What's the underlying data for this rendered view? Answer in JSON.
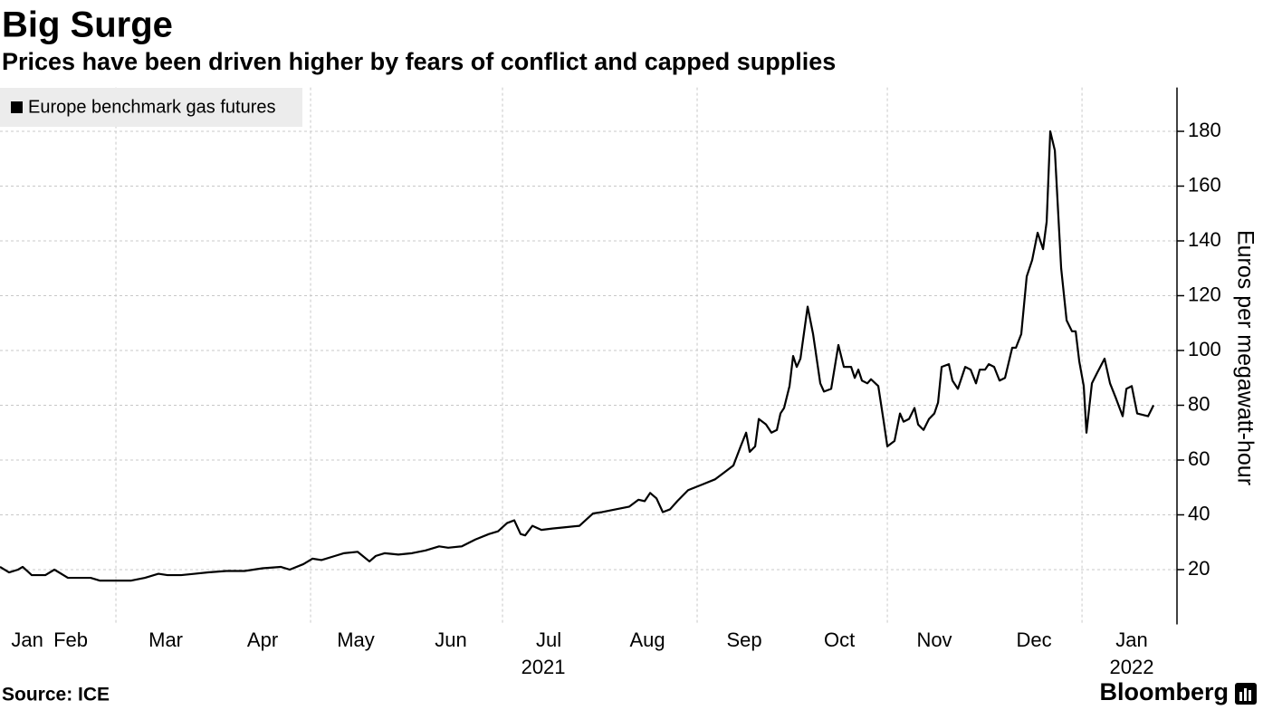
{
  "chart_data": {
    "type": "line",
    "title": "Big Surge",
    "subtitle": "Prices have been driven higher by fears of conflict and capped supplies",
    "source": "Source: ICE",
    "brand": "Bloomberg",
    "y_label": "Euros per megawatt-hour",
    "legend": "top-left",
    "grid": true,
    "xlim": [
      0.767,
      12.86
    ],
    "ylim": [
      0,
      196
    ],
    "yticks": [
      20,
      40,
      60,
      80,
      100,
      120,
      140,
      160,
      180
    ],
    "xticks": [
      {
        "value": 1.047,
        "label": "Jan"
      },
      {
        "value": 1.493,
        "label": "Feb"
      },
      {
        "value": 2.47,
        "label": "Mar"
      },
      {
        "value": 3.465,
        "label": "Apr"
      },
      {
        "value": 4.423,
        "label": "May"
      },
      {
        "value": 5.4,
        "label": "Jun"
      },
      {
        "value": 6.405,
        "label": "Jul"
      },
      {
        "value": 7.419,
        "label": "Aug"
      },
      {
        "value": 8.414,
        "label": "Sep"
      },
      {
        "value": 9.391,
        "label": "Oct"
      },
      {
        "value": 10.367,
        "label": "Nov"
      },
      {
        "value": 11.391,
        "label": "Dec"
      },
      {
        "value": 12.395,
        "label": "Jan"
      }
    ],
    "xgrid": [
      1.958,
      3.958,
      5.93,
      7.93,
      9.884,
      11.884
    ],
    "year_labels": [
      {
        "value": 6.349,
        "label": "2021"
      },
      {
        "value": 12.395,
        "label": "2022"
      }
    ],
    "x": [
      0.767,
      0.86,
      0.953,
      1.0,
      1.093,
      1.233,
      1.326,
      1.465,
      1.605,
      1.698,
      1.791,
      1.977,
      2.116,
      2.256,
      2.395,
      2.488,
      2.628,
      2.767,
      2.907,
      3.093,
      3.279,
      3.465,
      3.651,
      3.744,
      3.884,
      3.977,
      4.07,
      4.209,
      4.302,
      4.442,
      4.563,
      4.628,
      4.721,
      4.86,
      5.0,
      5.14,
      5.279,
      5.372,
      5.512,
      5.651,
      5.791,
      5.884,
      5.977,
      6.051,
      6.116,
      6.163,
      6.237,
      6.33,
      6.442,
      6.581,
      6.721,
      6.86,
      6.953,
      7.093,
      7.233,
      7.326,
      7.391,
      7.447,
      7.512,
      7.577,
      7.651,
      7.726,
      7.837,
      7.977,
      8.116,
      8.209,
      8.302,
      8.377,
      8.433,
      8.47,
      8.526,
      8.563,
      8.637,
      8.693,
      8.749,
      8.786,
      8.823,
      8.879,
      8.916,
      8.953,
      8.991,
      9.065,
      9.121,
      9.195,
      9.233,
      9.307,
      9.381,
      9.437,
      9.512,
      9.549,
      9.586,
      9.623,
      9.679,
      9.716,
      9.791,
      9.847,
      9.884,
      9.958,
      10.014,
      10.051,
      10.107,
      10.163,
      10.2,
      10.256,
      10.312,
      10.367,
      10.405,
      10.442,
      10.516,
      10.553,
      10.609,
      10.684,
      10.74,
      10.795,
      10.833,
      10.888,
      10.926,
      10.981,
      11.037,
      11.093,
      11.167,
      11.205,
      11.26,
      11.316,
      11.372,
      11.428,
      11.484,
      11.521,
      11.558,
      11.605,
      11.67,
      11.726,
      11.781,
      11.819,
      11.856,
      11.902,
      11.93,
      11.986,
      12.042,
      12.116,
      12.172,
      12.228,
      12.302,
      12.34,
      12.395,
      12.451,
      12.507,
      12.563,
      12.619
    ],
    "series": [
      {
        "name": "Europe benchmark gas futures",
        "color": "#000000",
        "values": [
          21,
          19,
          20,
          21,
          18,
          18,
          20,
          17,
          17,
          17,
          16,
          16,
          16,
          17,
          18.5,
          18,
          18,
          18.5,
          19,
          19.5,
          19.5,
          20.5,
          21,
          20,
          22,
          24,
          23.5,
          25,
          26,
          26.5,
          23,
          25,
          26,
          25.5,
          26,
          27,
          28.5,
          28,
          28.5,
          31,
          33,
          34,
          37,
          38,
          33,
          32.5,
          36,
          34.5,
          35,
          35.5,
          36,
          40.5,
          41,
          42,
          43,
          45.5,
          45,
          48,
          46,
          41,
          42,
          45,
          49,
          51,
          53,
          55.5,
          58,
          65,
          70,
          63,
          65,
          75,
          73,
          70,
          71,
          77,
          79,
          87,
          98,
          94,
          97,
          116,
          106,
          88,
          85,
          86,
          102,
          94,
          94,
          90,
          93,
          89,
          88,
          89.5,
          87,
          74,
          65,
          67,
          77,
          74,
          75,
          79,
          73,
          71,
          75,
          77,
          81,
          94,
          95,
          89,
          86,
          94,
          93,
          88,
          93,
          93,
          95,
          94,
          89,
          90,
          101,
          101,
          106,
          127,
          133,
          143,
          137,
          147,
          180,
          173,
          130,
          111,
          107,
          107,
          96,
          87,
          70,
          88,
          92,
          97,
          88,
          83,
          76,
          86,
          87,
          77,
          76.5,
          76,
          80
        ]
      }
    ]
  }
}
